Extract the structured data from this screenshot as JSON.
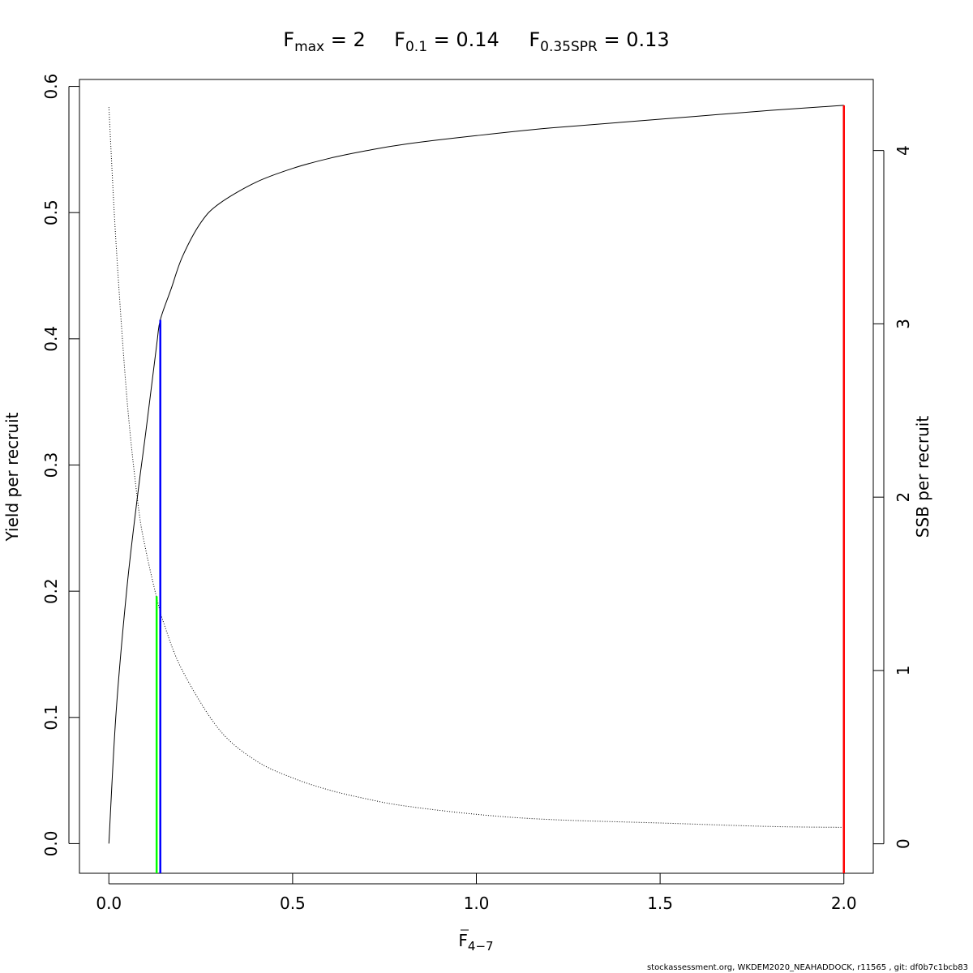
{
  "chart_data": {
    "type": "line",
    "title_parts": [
      {
        "main": "F",
        "sub": "max",
        "rest": " = 2"
      },
      {
        "main": "F",
        "sub": "0.1",
        "rest": " = 0.14"
      },
      {
        "main": "F",
        "sub": "0.35SPR",
        "rest": " = 0.13"
      }
    ],
    "xlabel": {
      "main": "F",
      "sub": "4−7"
    },
    "ylabel_left": "Yield per recruit",
    "ylabel_right": "SSB per recruit",
    "xlim": [
      -0.08,
      2.08
    ],
    "ylim_left": [
      -0.0235,
      0.6055
    ],
    "ylim_right": [
      -0.17,
      4.41
    ],
    "x_ticks": [
      0,
      0.5,
      1,
      1.5,
      2
    ],
    "x_tick_labels": [
      "0.0",
      "0.5",
      "1.0",
      "1.5",
      "2.0"
    ],
    "y_left_ticks": [
      0,
      0.1,
      0.2,
      0.3,
      0.4,
      0.5,
      0.6
    ],
    "y_left_tick_labels": [
      "0.0",
      "0.1",
      "0.2",
      "0.3",
      "0.4",
      "0.5",
      "0.6"
    ],
    "y_right_ticks": [
      0,
      1,
      2,
      3,
      4
    ],
    "y_right_tick_labels": [
      "0",
      "1",
      "2",
      "3",
      "4"
    ],
    "series": [
      {
        "key": "yield",
        "axis": "left",
        "style": "solid",
        "x": [
          0,
          0.02,
          0.05,
          0.08,
          0.1,
          0.13,
          0.14,
          0.17,
          0.2,
          0.25,
          0.3,
          0.4,
          0.5,
          0.6,
          0.7,
          0.8,
          1.0,
          1.2,
          1.5,
          1.8,
          2.0
        ],
        "y": [
          0,
          0.105,
          0.205,
          0.28,
          0.325,
          0.395,
          0.415,
          0.44,
          0.465,
          0.492,
          0.507,
          0.524,
          0.535,
          0.543,
          0.549,
          0.554,
          0.561,
          0.567,
          0.574,
          0.581,
          0.585
        ]
      },
      {
        "key": "ssb",
        "axis": "right",
        "style": "dotted",
        "x": [
          0,
          0.02,
          0.05,
          0.08,
          0.1,
          0.13,
          0.15,
          0.2,
          0.3,
          0.4,
          0.5,
          0.6,
          0.7,
          0.8,
          1.0,
          1.2,
          1.5,
          1.8,
          2.0
        ],
        "y": [
          4.25,
          3.45,
          2.55,
          1.95,
          1.7,
          1.42,
          1.27,
          1.0,
          0.66,
          0.48,
          0.38,
          0.31,
          0.26,
          0.22,
          0.17,
          0.14,
          0.12,
          0.1,
          0.095
        ]
      }
    ],
    "reference_lines": [
      {
        "key": "f035spr",
        "x": 0.13,
        "y_top": 0.196,
        "color": "#00ff00"
      },
      {
        "key": "f01",
        "x": 0.14,
        "y_top": 0.415,
        "color": "#0000ff"
      },
      {
        "key": "fmax",
        "x": 2.0,
        "y_top": 0.585,
        "color": "#ff0000"
      }
    ]
  },
  "footer": "stockassessment.org, WKDEM2020_NEAHADDOCK, r11565 , git: df0b7c1bcb83"
}
